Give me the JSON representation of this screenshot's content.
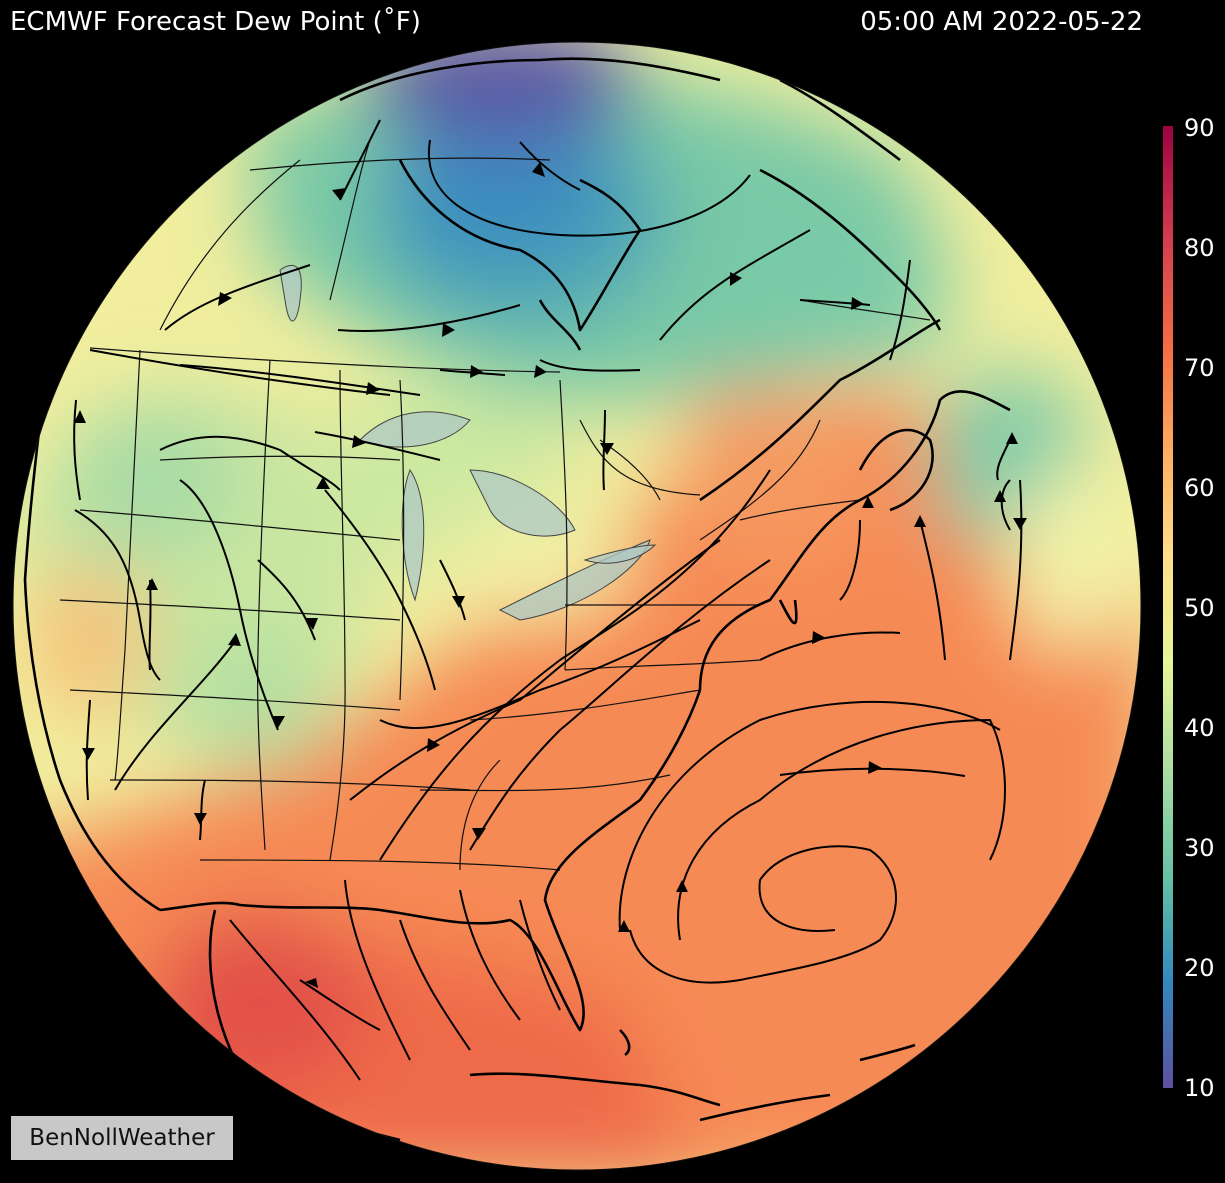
{
  "header": {
    "title": "ECMWF Forecast Dew Point (˚F)",
    "valid_time": "05:00 AM 2022-05-22"
  },
  "colorbar": {
    "min": 10,
    "max": 90,
    "labels": [
      "90",
      "80",
      "70",
      "60",
      "50",
      "40",
      "30",
      "20",
      "10"
    ],
    "colormap": [
      "#5e4fa2",
      "#3288bd",
      "#66c2a5",
      "#abdda4",
      "#e6f598",
      "#fee08b",
      "#fdae61",
      "#f46d43",
      "#d53e4f",
      "#9e0142"
    ]
  },
  "watermark": {
    "text": "BenNollWeather"
  },
  "map": {
    "projection": "orthographic globe centered over eastern North America",
    "field": "dew point",
    "overlays": [
      "coastlines",
      "state and province borders",
      "great lakes",
      "wind streamlines with arrows"
    ]
  }
}
